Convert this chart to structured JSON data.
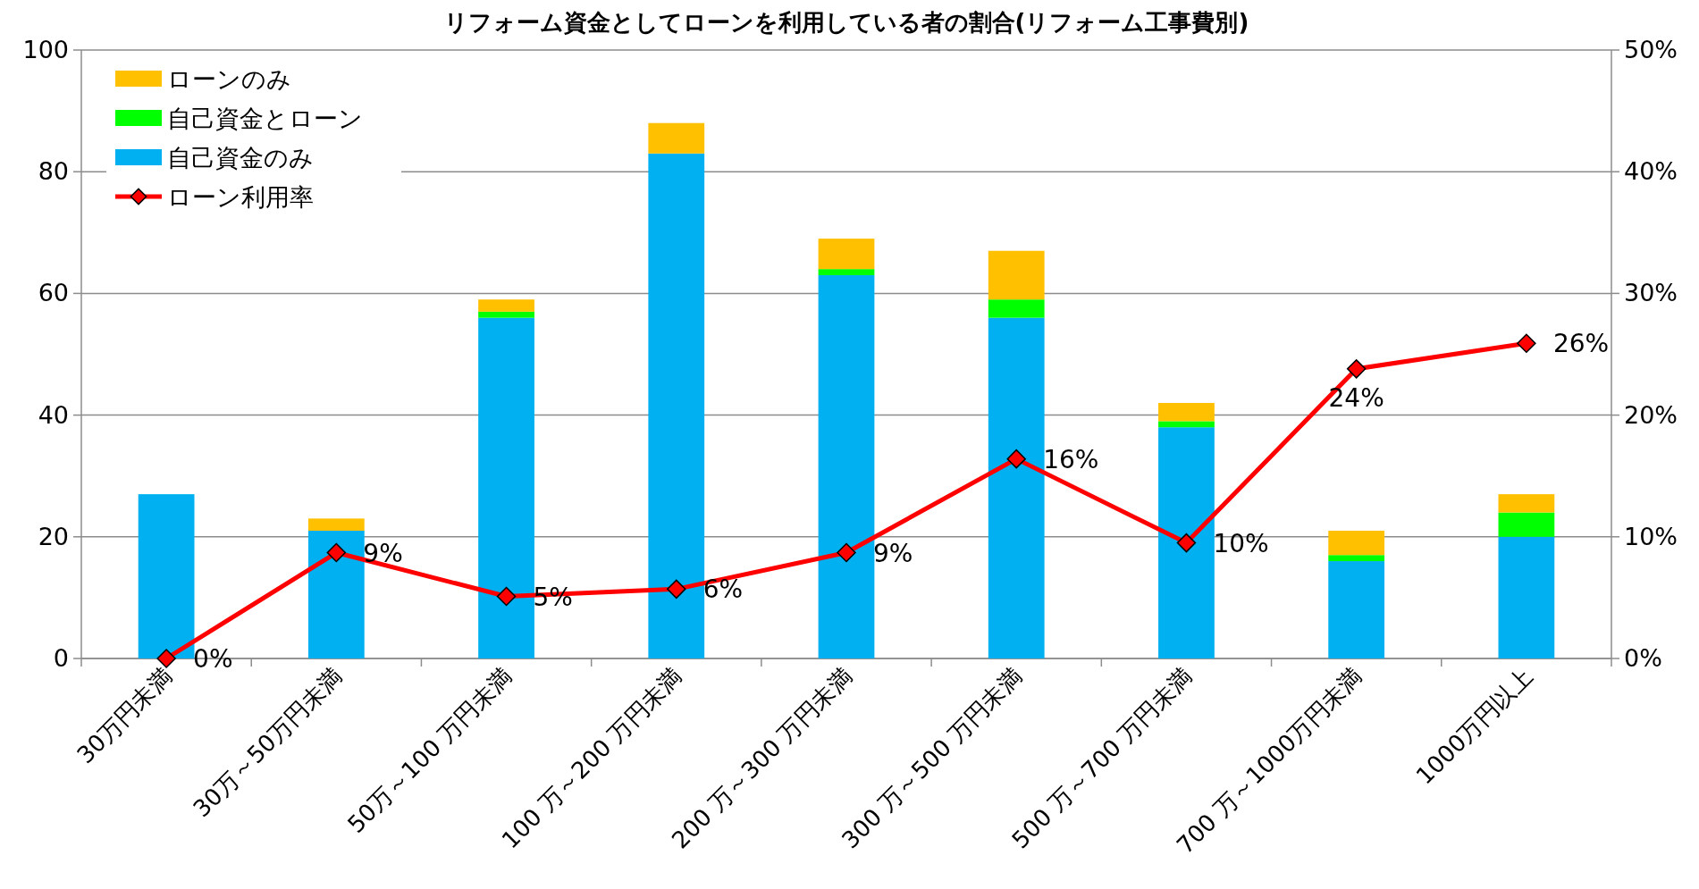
{
  "chart_data": {
    "type": "bar",
    "stacked": true,
    "title": "リフォーム資金としてローンを利用している者の割合(リフォーム工事費別)",
    "categories": [
      "30万円未満",
      "30万～50万円未満",
      "50万～100 万円未満",
      "100 万～200 万円未満",
      "200 万～300 万円未満",
      "300 万～500 万円未満",
      "500 万～700 万円未満",
      "700 万～1000万円未満",
      "1000万円以上"
    ],
    "series": [
      {
        "name": "自己資金のみ",
        "color": "#00b0f0",
        "values": [
          27,
          21,
          56,
          83,
          63,
          56,
          38,
          16,
          20
        ]
      },
      {
        "name": "自己資金とローン",
        "color": "#00ff00",
        "values": [
          0,
          0,
          1,
          0,
          1,
          3,
          1,
          1,
          4
        ]
      },
      {
        "name": "ローンのみ",
        "color": "#ffc000",
        "values": [
          0,
          2,
          2,
          5,
          5,
          8,
          3,
          4,
          3
        ]
      },
      {
        "name": "ローン利用率",
        "type": "line",
        "axis": "y2",
        "color": "#ff0000",
        "marker": "diamond",
        "values": [
          0,
          8.7,
          5.1,
          5.7,
          8.7,
          16.4,
          9.5,
          23.8,
          25.9
        ],
        "value_labels": [
          "0%",
          "9%",
          "5%",
          "6%",
          "9%",
          "16%",
          "10%",
          "24%",
          "26%"
        ]
      }
    ],
    "ylim": [
      0,
      100
    ],
    "yticks": [
      0,
      20,
      40,
      60,
      80,
      100
    ],
    "y2lim": [
      0,
      50
    ],
    "y2ticks": [
      {
        "value": 0,
        "label": "0%"
      },
      {
        "value": 10,
        "label": "10%"
      },
      {
        "value": 20,
        "label": "20%"
      },
      {
        "value": 30,
        "label": "30%"
      },
      {
        "value": 40,
        "label": "40%"
      },
      {
        "value": 50,
        "label": "50%"
      }
    ],
    "grid": "y",
    "legend": "top left"
  }
}
